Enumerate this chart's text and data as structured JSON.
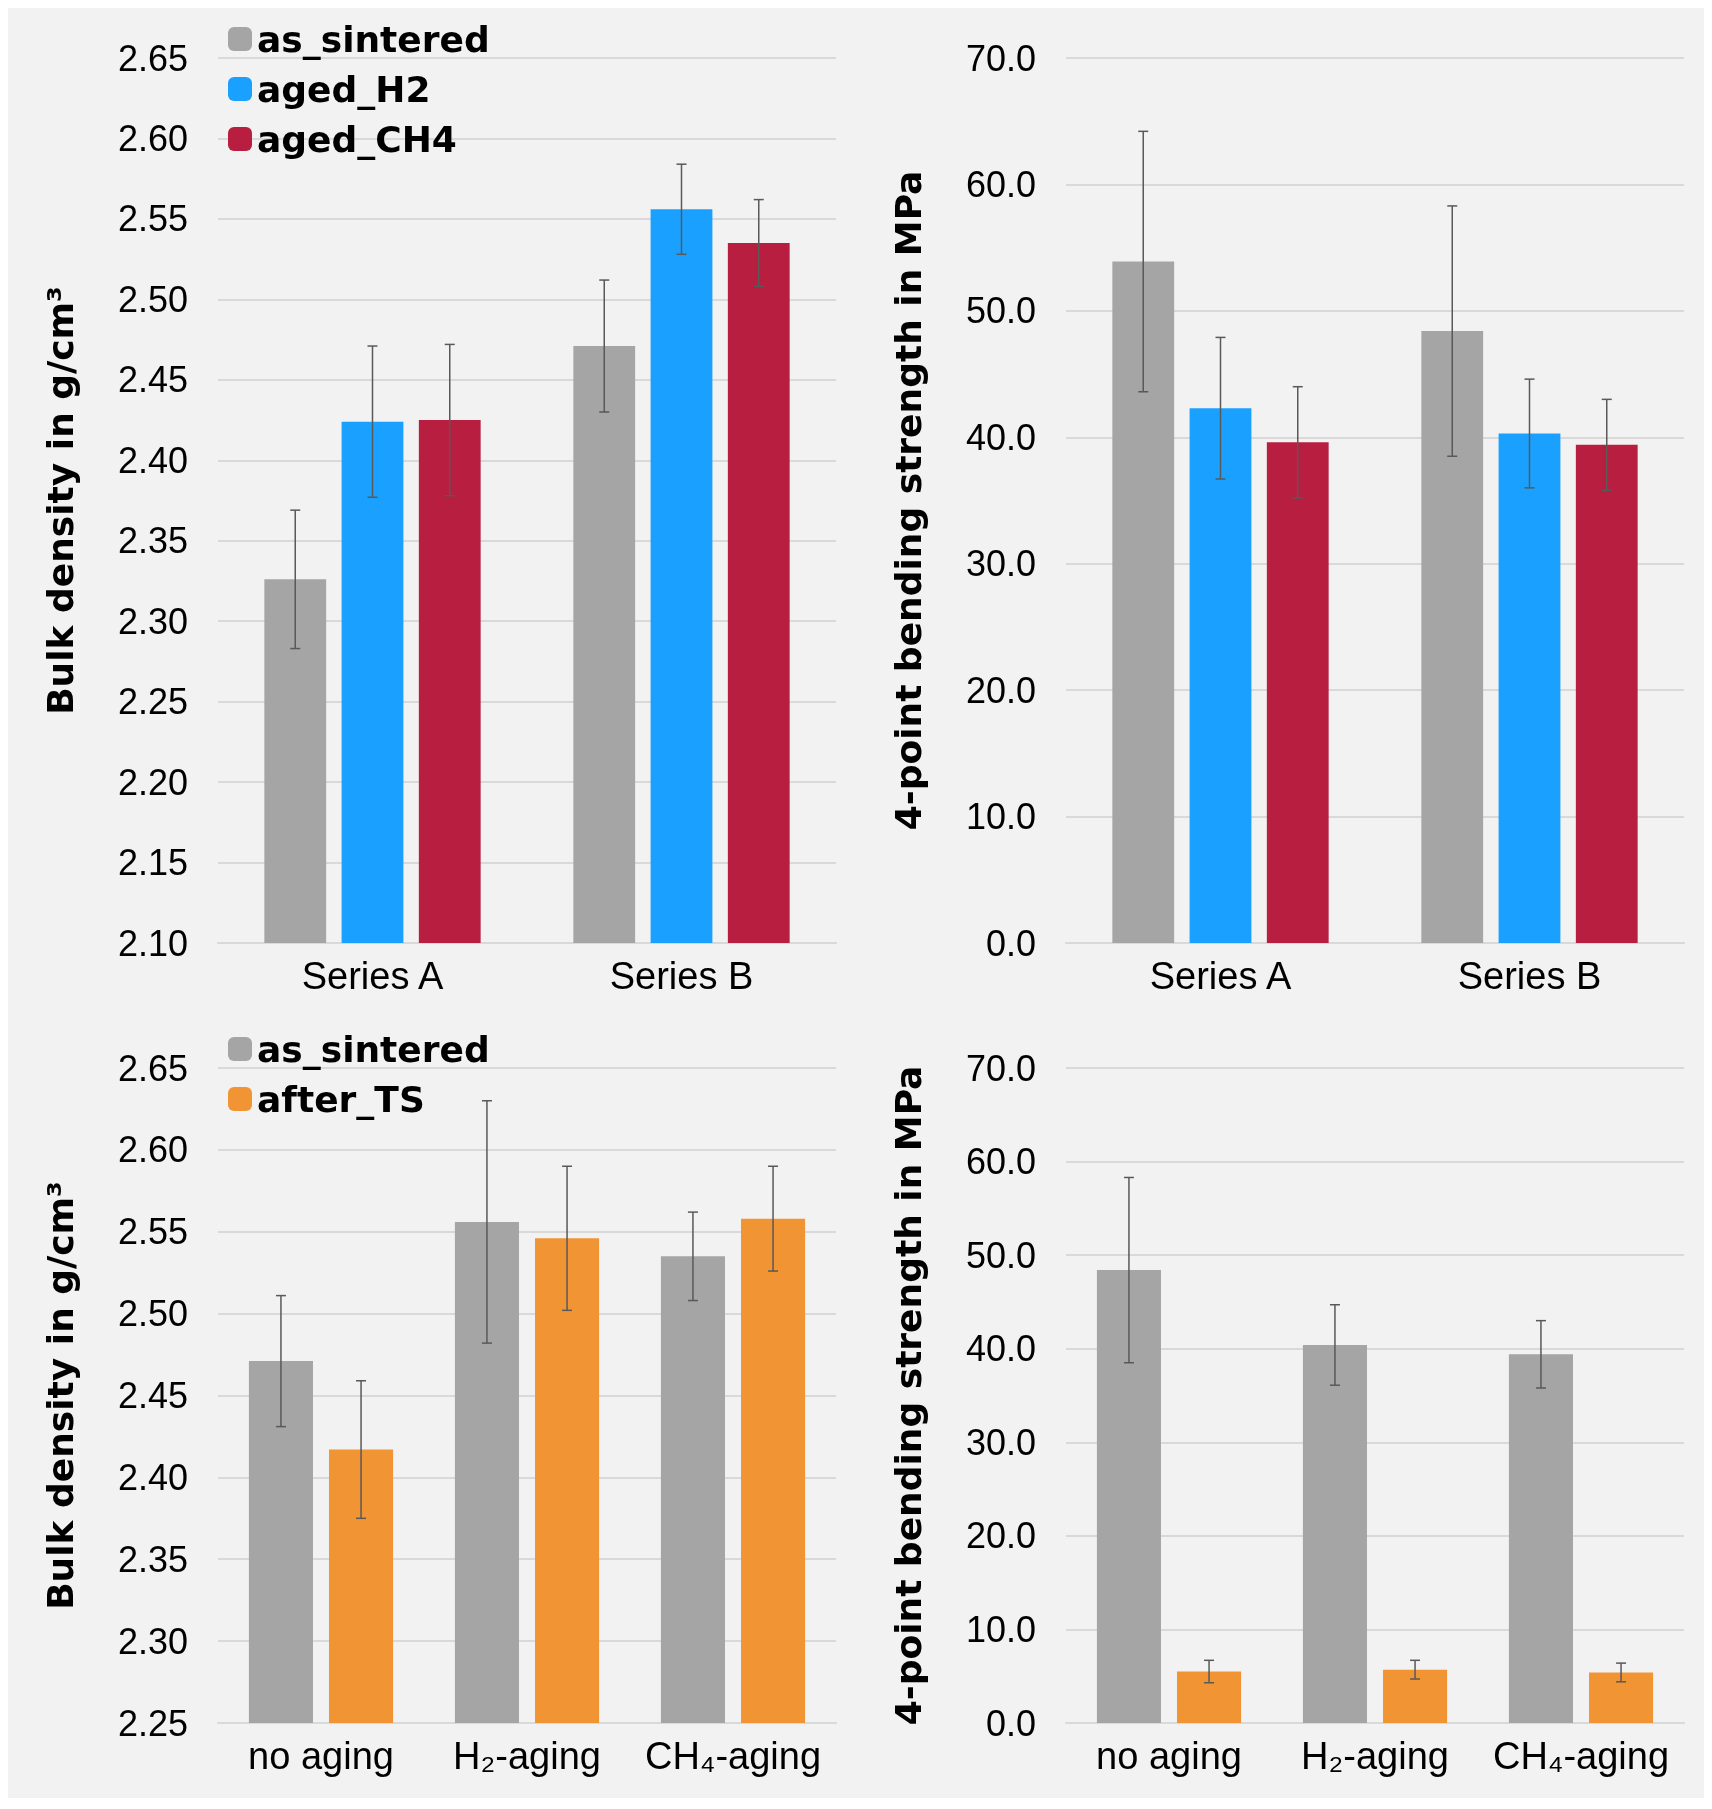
{
  "chart_data": [
    {
      "type": "bar",
      "ylabel": "Bulk density in g/cm³",
      "categories": [
        "Series A",
        "Series B"
      ],
      "ylim": [
        2.1,
        2.65
      ],
      "yticks": [
        {
          "value": 2.1,
          "label": "2.10"
        },
        {
          "value": 2.15,
          "label": "2.15"
        },
        {
          "value": 2.2,
          "label": "2.20"
        },
        {
          "value": 2.25,
          "label": "2.25"
        },
        {
          "value": 2.3,
          "label": "2.30"
        },
        {
          "value": 2.35,
          "label": "2.35"
        },
        {
          "value": 2.4,
          "label": "2.40"
        },
        {
          "value": 2.45,
          "label": "2.45"
        },
        {
          "value": 2.5,
          "label": "2.50"
        },
        {
          "value": 2.55,
          "label": "2.55"
        },
        {
          "value": 2.6,
          "label": "2.60"
        },
        {
          "value": 2.65,
          "label": "2.65"
        }
      ],
      "grid": "y",
      "legend": "top left",
      "series": [
        {
          "name": "as_sintered",
          "color": "#a5a5a5",
          "values": [
            2.326,
            2.471
          ],
          "errors": [
            0.043,
            0.041
          ]
        },
        {
          "name": "aged_H2",
          "color": "#1aa1ff",
          "values": [
            2.424,
            2.556
          ],
          "errors": [
            0.047,
            0.028
          ]
        },
        {
          "name": "aged_CH4",
          "color": "#b71e3f",
          "values": [
            2.425,
            2.535
          ],
          "errors": [
            0.047,
            0.027
          ]
        }
      ]
    },
    {
      "type": "bar",
      "ylabel": "4-point bending strength in MPa",
      "categories": [
        "Series A",
        "Series B"
      ],
      "ylim": [
        0,
        70
      ],
      "yticks": [
        {
          "value": 0,
          "label": "0.0"
        },
        {
          "value": 10,
          "label": "10.0"
        },
        {
          "value": 20,
          "label": "20.0"
        },
        {
          "value": 30,
          "label": "30.0"
        },
        {
          "value": 40,
          "label": "40.0"
        },
        {
          "value": 50,
          "label": "50.0"
        },
        {
          "value": 60,
          "label": "60.0"
        },
        {
          "value": 70,
          "label": "70.0"
        }
      ],
      "grid": "y",
      "series": [
        {
          "color": "#a5a5a5",
          "values": [
            53.9,
            48.4
          ],
          "errors": [
            10.3,
            9.9
          ]
        },
        {
          "color": "#1aa1ff",
          "values": [
            42.3,
            40.3
          ],
          "errors": [
            5.6,
            4.3
          ]
        },
        {
          "color": "#b71e3f",
          "values": [
            39.6,
            39.4
          ],
          "errors": [
            4.4,
            3.6
          ]
        }
      ]
    },
    {
      "type": "bar",
      "ylabel": "Bulk density in g/cm³",
      "categories": [
        "no aging",
        "H₂-aging",
        "CH₄-aging"
      ],
      "ylim": [
        2.25,
        2.65
      ],
      "yticks": [
        {
          "value": 2.25,
          "label": "2.25"
        },
        {
          "value": 2.3,
          "label": "2.30"
        },
        {
          "value": 2.35,
          "label": "2.35"
        },
        {
          "value": 2.4,
          "label": "2.40"
        },
        {
          "value": 2.45,
          "label": "2.45"
        },
        {
          "value": 2.5,
          "label": "2.50"
        },
        {
          "value": 2.55,
          "label": "2.55"
        },
        {
          "value": 2.6,
          "label": "2.60"
        },
        {
          "value": 2.65,
          "label": "2.65"
        }
      ],
      "grid": "y",
      "legend": "top left",
      "series": [
        {
          "name": "as_sintered",
          "color": "#a5a5a5",
          "values": [
            2.471,
            2.556,
            2.535
          ],
          "errors": [
            0.04,
            0.074,
            0.027
          ]
        },
        {
          "name": "after_TS",
          "color": "#f19534",
          "values": [
            2.417,
            2.546,
            2.558
          ],
          "errors": [
            0.042,
            0.044,
            0.032
          ]
        }
      ]
    },
    {
      "type": "bar",
      "ylabel": "4-point bending strength in MPa",
      "categories": [
        "no aging",
        "H₂-aging",
        "CH₄-aging"
      ],
      "ylim": [
        0,
        70
      ],
      "yticks": [
        {
          "value": 0,
          "label": "0.0"
        },
        {
          "value": 10,
          "label": "10.0"
        },
        {
          "value": 20,
          "label": "20.0"
        },
        {
          "value": 30,
          "label": "30.0"
        },
        {
          "value": 40,
          "label": "40.0"
        },
        {
          "value": 50,
          "label": "50.0"
        },
        {
          "value": 60,
          "label": "60.0"
        },
        {
          "value": 70,
          "label": "70.0"
        }
      ],
      "grid": "y",
      "series": [
        {
          "color": "#a5a5a5",
          "values": [
            48.4,
            40.4,
            39.4
          ],
          "errors": [
            9.9,
            4.3,
            3.6
          ]
        },
        {
          "color": "#f19534",
          "values": [
            5.5,
            5.7,
            5.4
          ],
          "errors": [
            1.2,
            1.0,
            1.0
          ]
        }
      ]
    }
  ]
}
